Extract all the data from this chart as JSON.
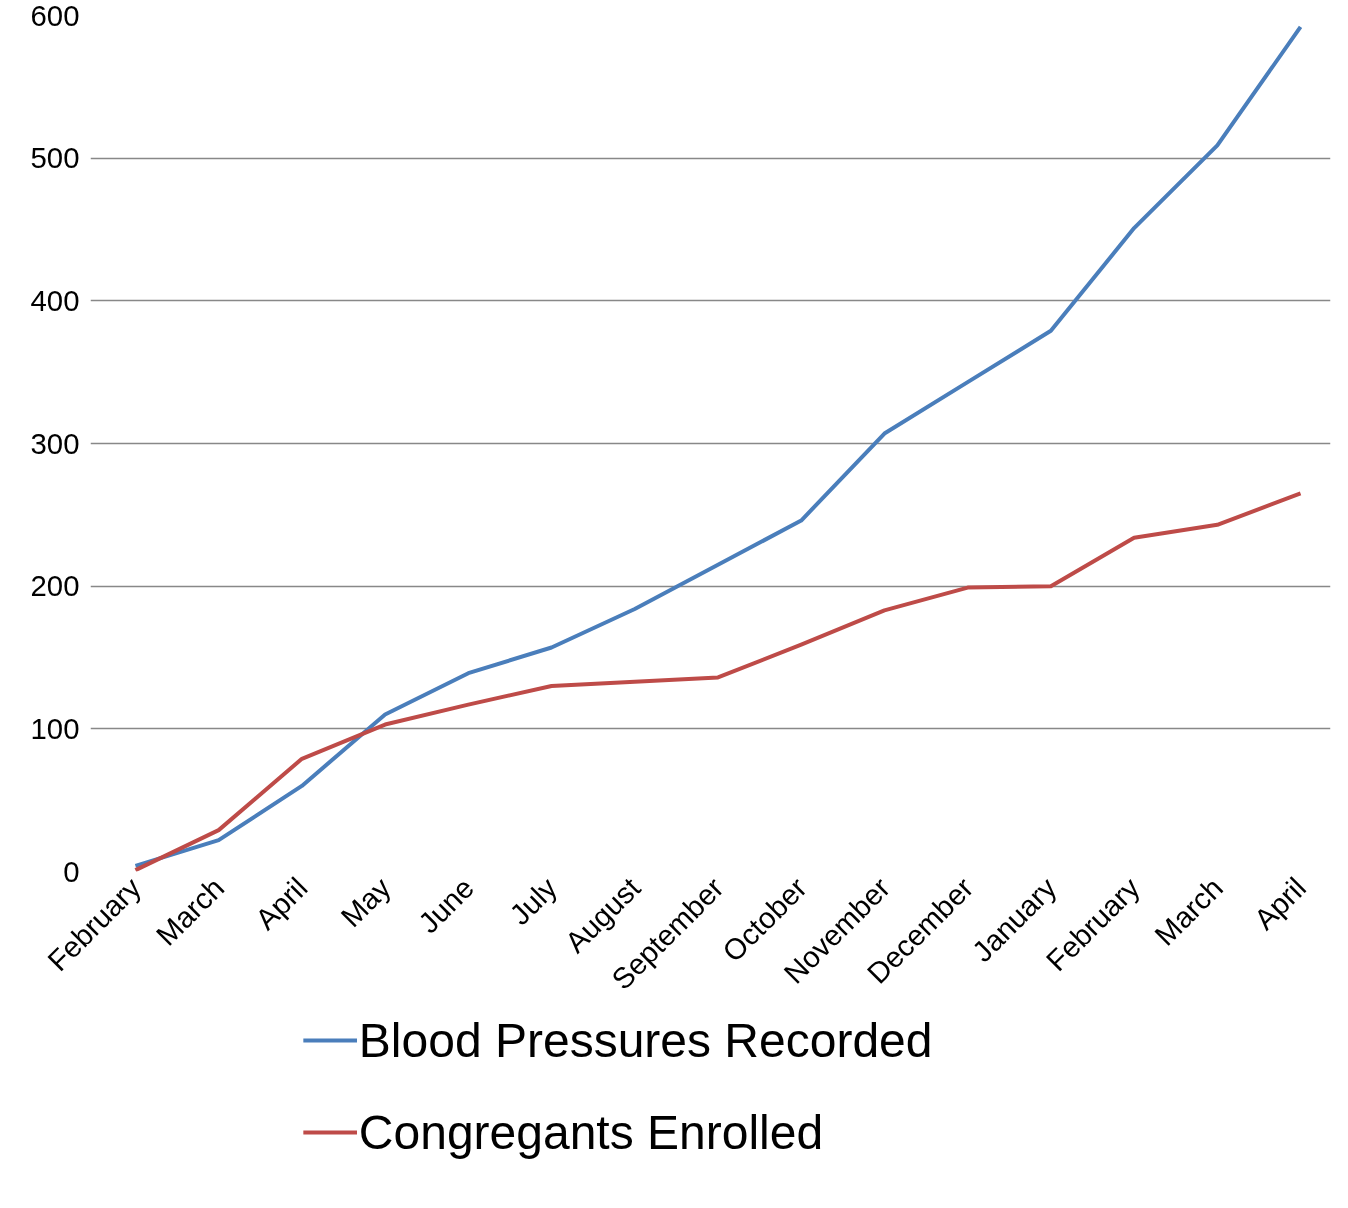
{
  "chart_data": {
    "type": "line",
    "categories": [
      "February",
      "March",
      "April",
      "May",
      "June",
      "July",
      "August",
      "September",
      "October",
      "November",
      "December",
      "January",
      "February",
      "March",
      "April"
    ],
    "series": [
      {
        "name": "Blood Pressures Recorded",
        "color": "#4a7ebb",
        "values": [
          4,
          22,
          60,
          110,
          139,
          157,
          184,
          215,
          246,
          307,
          343,
          379,
          451,
          509,
          592
        ]
      },
      {
        "name": "Congregants Enrolled",
        "color": "#be4b48",
        "values": [
          1,
          29,
          79,
          103,
          117,
          130,
          133,
          136,
          159,
          183,
          199,
          200,
          234,
          243,
          265
        ]
      }
    ],
    "ylim": [
      0,
      600
    ],
    "yticks": [
      0,
      100,
      200,
      300,
      400,
      500,
      600
    ],
    "grid": "y",
    "legend": "bottom",
    "line_style": "solid",
    "marker": "none"
  }
}
